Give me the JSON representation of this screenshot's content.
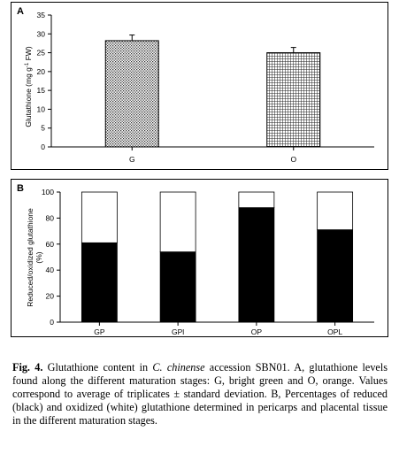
{
  "chart_data": [
    {
      "panel": "A",
      "type": "bar",
      "categories": [
        "G",
        "O"
      ],
      "values": [
        28.2,
        25.0
      ],
      "errors": [
        1.5,
        1.4
      ],
      "patterns": [
        "dotted",
        "grid"
      ],
      "ylabel": "Glutathione (mg g-1 FW)",
      "ylim": [
        0,
        35
      ],
      "yticks": [
        0,
        5,
        10,
        15,
        20,
        25,
        30,
        35
      ],
      "grid": false
    },
    {
      "panel": "B",
      "type": "bar",
      "stacked": true,
      "categories": [
        "GP",
        "GPl",
        "OP",
        "OPL"
      ],
      "series": [
        {
          "values": [
            61,
            54,
            88,
            71
          ],
          "color": "#000000"
        },
        {
          "values": [
            39,
            46,
            12,
            29
          ],
          "color": "#ffffff"
        }
      ],
      "ylabel": "Reduced/oxidized glutathione (%)",
      "ylim": [
        0,
        100
      ],
      "yticks": [
        0,
        20,
        40,
        60,
        80,
        100
      ],
      "grid": false
    }
  ],
  "caption": {
    "fig_label": "Fig. 4.",
    "part1": " Glutathione content in ",
    "species": "C. chinense",
    "part2": " accession SBN01. A, glutathione levels found along the different maturation stages: G, bright green and O, orange. Values correspond to average of triplicates ± standard deviation. B, Percentages of reduced (black) and oxidized (white) glutathione determined in pericarps and placental tissue in the different maturation stages."
  }
}
